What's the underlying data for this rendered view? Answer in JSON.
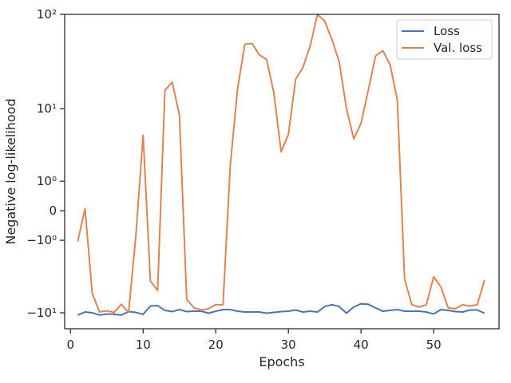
{
  "chart_data": {
    "type": "line",
    "xlabel": "Epochs",
    "ylabel": "Negative log-likelihood",
    "yscale": "symlog",
    "xlim": [
      -0.8,
      59
    ],
    "ylim": [
      -15,
      100
    ],
    "grid": false,
    "legend_position": "top-right",
    "x_ticks": [
      0,
      10,
      20,
      30,
      40,
      50
    ],
    "y_ticks": [
      {
        "value": -10,
        "label": "−10¹"
      },
      {
        "value": -1,
        "label": "−10⁰"
      },
      {
        "value": 0,
        "label": "0"
      },
      {
        "value": 1,
        "label": "10⁰"
      },
      {
        "value": 10,
        "label": "10¹"
      },
      {
        "value": 100,
        "label": "10²"
      }
    ],
    "x": [
      1,
      2,
      3,
      4,
      5,
      6,
      7,
      8,
      9,
      10,
      11,
      12,
      13,
      14,
      15,
      16,
      17,
      18,
      19,
      20,
      21,
      22,
      23,
      24,
      25,
      26,
      27,
      28,
      29,
      30,
      31,
      32,
      33,
      34,
      35,
      36,
      37,
      38,
      39,
      40,
      41,
      42,
      43,
      44,
      45,
      46,
      47,
      48,
      49,
      50,
      51,
      52,
      53,
      54,
      55,
      56,
      57
    ],
    "series": [
      {
        "name": "Loss",
        "color": "#4c72b0",
        "values": [
          -10.6,
          -9.8,
          -10.0,
          -10.6,
          -10.3,
          -10.4,
          -10.6,
          -9.7,
          -9.9,
          -10.4,
          -8.4,
          -8.3,
          -9.4,
          -9.7,
          -9.2,
          -9.7,
          -9.6,
          -9.6,
          -10.1,
          -9.6,
          -9.2,
          -9.2,
          -9.6,
          -9.8,
          -9.8,
          -9.8,
          -10.1,
          -9.9,
          -9.7,
          -9.6,
          -9.3,
          -9.8,
          -9.6,
          -9.8,
          -8.5,
          -8.1,
          -8.5,
          -10.1,
          -8.6,
          -7.9,
          -8.0,
          -8.8,
          -9.6,
          -9.4,
          -9.2,
          -9.6,
          -9.6,
          -9.6,
          -9.8,
          -10.3,
          -9.2,
          -9.4,
          -9.7,
          -9.8,
          -9.3,
          -9.3,
          -10.1
        ]
      },
      {
        "name": "Val. loss",
        "color": "#dd8452",
        "values": [
          -1.05,
          0.05,
          -6.0,
          -9.8,
          -9.5,
          -9.9,
          -8.0,
          -9.9,
          -0.8,
          4.9,
          -4.2,
          -5.5,
          16.0,
          19.5,
          8.5,
          -7.0,
          -8.8,
          -9.3,
          -9.0,
          -8.1,
          -8.1,
          1.9,
          16.5,
          49,
          50,
          38,
          34,
          15,
          3.0,
          5.0,
          21,
          28,
          47,
          100,
          85,
          55,
          32,
          10,
          4.4,
          6.8,
          16.0,
          37,
          42,
          30,
          12.5,
          -4.0,
          -8.1,
          -8.6,
          -8.1,
          -3.7,
          -5.0,
          -8.8,
          -9.0,
          -8.1,
          -8.4,
          -8.1,
          -4.1
        ]
      }
    ]
  }
}
